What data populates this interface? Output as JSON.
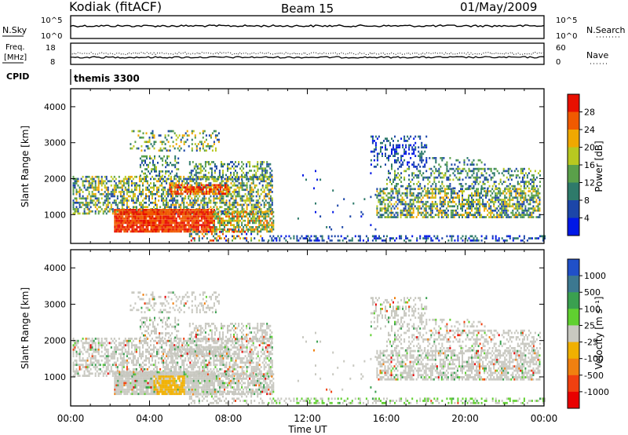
{
  "header": {
    "title": "Kodiak (fitACF)",
    "beam": "Beam 15",
    "date": "01/May/2009"
  },
  "summary_panels": {
    "nsky_label": "N.Sky",
    "nsky_ticks": [
      "10^5",
      "10^0"
    ],
    "nsearch_label": "N.Search",
    "nsearch_ticks": [
      "10^5",
      "10^0"
    ],
    "freq_label_1": "Freq.",
    "freq_label_2": "[MHz]",
    "freq_ticks": [
      "18",
      "8"
    ],
    "nave_label": "Nave",
    "nave_ticks": [
      "60",
      "0"
    ],
    "cpid_label": "CPID",
    "cpid_value": "themis 3300"
  },
  "colors": {
    "power": [
      "#0018e6",
      "#1c46a8",
      "#2e7a6a",
      "#5aa04a",
      "#b8c820",
      "#f0a800",
      "#f05a00",
      "#e81000"
    ],
    "velocity": [
      "#2050c8",
      "#3c7890",
      "#3aa050",
      "#60d030",
      "#c8c8c0",
      "#f0b000",
      "#f08010",
      "#f04010",
      "#e80000"
    ]
  },
  "chart_data": [
    {
      "type": "heatmap",
      "name": "power-panel",
      "xlabel": "",
      "ylabel": "Slant Range [km]",
      "x_ticks": [
        "00:00",
        "04:00",
        "08:00",
        "12:00",
        "16:00",
        "20:00",
        "00:00"
      ],
      "y_ticks": [
        "1000",
        "2000",
        "3000",
        "4000"
      ],
      "ylim": [
        200,
        4500
      ],
      "colorbar_label": "Power [dB]",
      "colorbar_ticks": [
        "28",
        "24",
        "20",
        "16",
        "12",
        "8",
        "4"
      ],
      "colorbar_range": [
        0,
        32
      ]
    },
    {
      "type": "heatmap",
      "name": "velocity-panel",
      "xlabel": "Time UT",
      "ylabel": "Slant Range [km]",
      "x_ticks": [
        "00:00",
        "04:00",
        "08:00",
        "12:00",
        "16:00",
        "20:00",
        "00:00"
      ],
      "y_ticks": [
        "1000",
        "2000",
        "3000",
        "4000"
      ],
      "ylim": [
        200,
        4500
      ],
      "colorbar_label": "Velocity [m s⁻¹]",
      "colorbar_ticks": [
        "1000",
        "500",
        "100",
        "25",
        "-25",
        "-100",
        "-500",
        "-1000"
      ]
    }
  ]
}
